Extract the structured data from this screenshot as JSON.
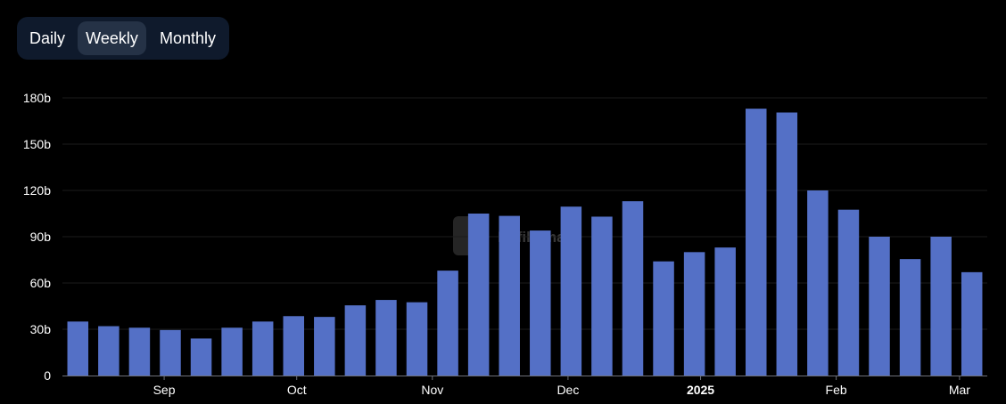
{
  "toggle": {
    "options": [
      "Daily",
      "Weekly",
      "Monthly"
    ],
    "selected": "Weekly"
  },
  "colors": {
    "bar": "#5470c6",
    "grid": "#1c1c1c",
    "axis": "#6e7079",
    "background": "#000000"
  },
  "chart_data": {
    "type": "bar",
    "title": "",
    "xlabel": "",
    "ylabel": "",
    "ylim": [
      0,
      180
    ],
    "y_ticks": [
      {
        "value": 0,
        "label": "0"
      },
      {
        "value": 30,
        "label": "30b"
      },
      {
        "value": 60,
        "label": "60b"
      },
      {
        "value": 90,
        "label": "90b"
      },
      {
        "value": 120,
        "label": "120b"
      },
      {
        "value": 150,
        "label": "150b"
      },
      {
        "value": 180,
        "label": "180b"
      }
    ],
    "x_ticks": [
      {
        "label": "Sep",
        "position": 3.3,
        "bold": false
      },
      {
        "label": "Oct",
        "position": 7.6,
        "bold": false
      },
      {
        "label": "Nov",
        "position": 12.0,
        "bold": false
      },
      {
        "label": "Dec",
        "position": 16.4,
        "bold": false
      },
      {
        "label": "2025",
        "position": 20.7,
        "bold": true
      },
      {
        "label": "Feb",
        "position": 25.1,
        "bold": false
      },
      {
        "label": "Mar",
        "position": 29.1,
        "bold": false
      }
    ],
    "grid": true,
    "legend": "none",
    "values": [
      35,
      32,
      31,
      29.5,
      24,
      31,
      35,
      38.5,
      38,
      45.5,
      49,
      47.5,
      68,
      105,
      103.5,
      94,
      109.5,
      103,
      113,
      74,
      80,
      83,
      173,
      170.5,
      120,
      107.5,
      90,
      75.5,
      90,
      67
    ]
  },
  "watermark": {
    "text": "Defillama"
  }
}
